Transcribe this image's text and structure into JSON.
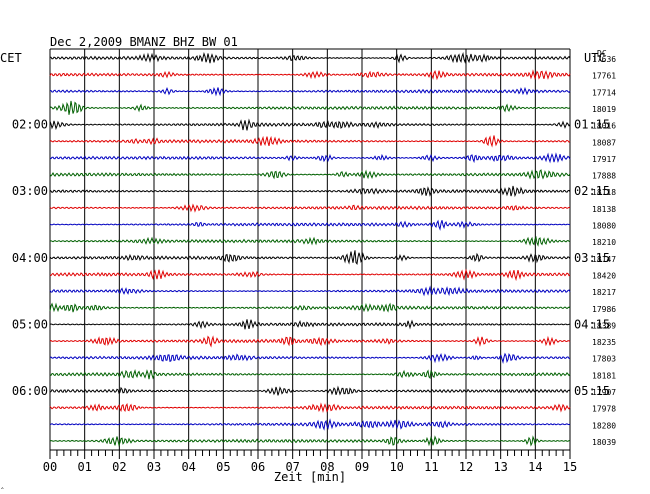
{
  "header": {
    "title": "Dec 2,2009   BMANZ BHZ BW 01",
    "left_zone": "CET",
    "right_zone": "UTC",
    "count_unit": "DC"
  },
  "footer": {
    "xlabel": "Zeit [min]",
    "corner_mark": "‸"
  },
  "trace_colors": [
    "#000000",
    "#e00000",
    "#0000c0",
    "#006000"
  ],
  "chart_data": {
    "type": "line",
    "title": "Dec 2,2009   BMANZ BHZ BW 01",
    "xlabel": "Zeit [min]",
    "xlim": [
      0,
      15
    ],
    "x_ticks": [
      "00",
      "01",
      "02",
      "03",
      "04",
      "05",
      "06",
      "07",
      "08",
      "09",
      "10",
      "11",
      "12",
      "13",
      "14",
      "15"
    ],
    "grid": true,
    "rows": 24,
    "hour_labels": [
      {
        "row": 4,
        "cet": "02:00",
        "utc": "01:15"
      },
      {
        "row": 8,
        "cet": "03:00",
        "utc": "02:15"
      },
      {
        "row": 12,
        "cet": "04:00",
        "utc": "03:15"
      },
      {
        "row": 16,
        "cet": "05:00",
        "utc": "04:15"
      },
      {
        "row": 20,
        "cet": "06:00",
        "utc": "05:15"
      }
    ],
    "offsets_dc": [
      17636,
      17761,
      17714,
      18019,
      18016,
      18087,
      17917,
      17888,
      18118,
      18138,
      18080,
      18210,
      18147,
      18420,
      18217,
      17986,
      18389,
      18235,
      17803,
      18181,
      17907,
      17978,
      18280,
      18039
    ]
  }
}
